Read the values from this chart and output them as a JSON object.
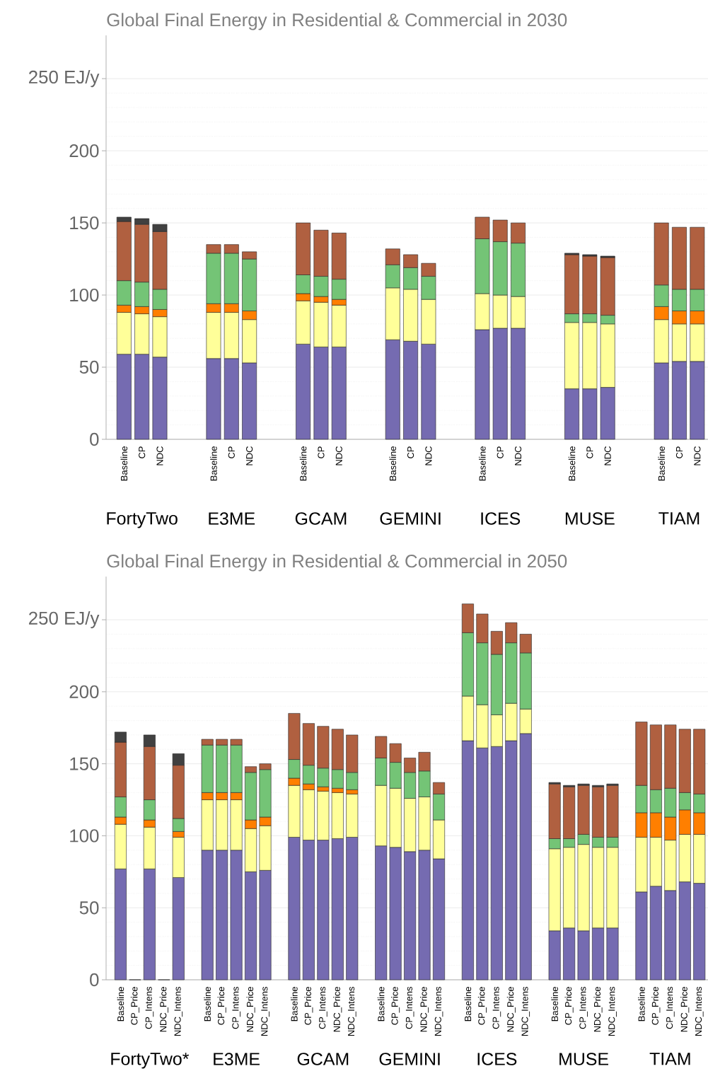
{
  "chart_data": [
    {
      "type": "bar",
      "stacked": true,
      "title": "Global Final Energy in Residential & Commercial in 2030",
      "categories": [
        "Baseline",
        "CP",
        "NDC",
        null,
        null,
        "Baseline",
        "CP",
        "NDC",
        null,
        null,
        "Baseline",
        "CP",
        "NDC",
        null,
        null,
        "Baseline",
        "CP",
        "NDC",
        null,
        null,
        "Baseline",
        "CP",
        "NDC",
        null,
        null,
        "Baseline",
        "CP",
        "NDC",
        null,
        null,
        "Baseline",
        "CP",
        "NDC"
      ],
      "series": [
        {
          "color": "#756bb1",
          "values": [
            59,
            59,
            57,
            null,
            null,
            56,
            56,
            53,
            null,
            null,
            66,
            64,
            64,
            null,
            null,
            69,
            68,
            66,
            null,
            null,
            76,
            77,
            77,
            null,
            null,
            35,
            35,
            36,
            null,
            null,
            53,
            54,
            54
          ]
        },
        {
          "color": "#ffff99",
          "values": [
            29,
            28,
            28,
            null,
            null,
            32,
            32,
            30,
            null,
            null,
            30,
            31,
            29,
            null,
            null,
            36,
            36,
            31,
            null,
            null,
            25,
            23,
            22,
            null,
            null,
            46,
            46,
            44,
            null,
            null,
            30,
            26,
            26
          ]
        },
        {
          "color": "#ff7f00",
          "values": [
            5,
            5,
            5,
            null,
            null,
            6,
            6,
            6,
            null,
            null,
            5,
            4,
            4,
            null,
            null,
            null,
            null,
            null,
            null,
            null,
            null,
            null,
            null,
            null,
            null,
            null,
            null,
            null,
            null,
            null,
            9,
            9,
            9
          ]
        },
        {
          "color": "#74c476",
          "values": [
            17,
            17,
            14,
            null,
            null,
            35,
            35,
            36,
            null,
            null,
            13,
            14,
            14,
            null,
            null,
            16,
            15,
            16,
            null,
            null,
            38,
            37,
            37,
            null,
            null,
            6,
            6,
            6,
            null,
            null,
            15,
            15,
            15
          ]
        },
        {
          "color": "#b06040",
          "values": [
            41,
            40,
            40,
            null,
            null,
            6,
            6,
            5,
            null,
            null,
            36,
            32,
            32,
            null,
            null,
            11,
            9,
            9,
            null,
            null,
            15,
            15,
            14,
            null,
            null,
            41,
            40,
            40,
            null,
            null,
            43,
            43,
            43
          ]
        },
        {
          "color": "#404040",
          "values": [
            3,
            4,
            5,
            null,
            null,
            null,
            null,
            null,
            null,
            null,
            null,
            null,
            null,
            null,
            null,
            null,
            null,
            null,
            null,
            null,
            null,
            null,
            null,
            null,
            null,
            1,
            1,
            1,
            null,
            null,
            null,
            null,
            null
          ]
        }
      ],
      "ylim": [
        0,
        280
      ],
      "yticks": [
        0,
        50,
        100,
        150,
        200,
        {
          "value": 250,
          "label": "250 EJ/y"
        }
      ],
      "grid": "y",
      "annotations": [
        "FortyTwo",
        "E3ME",
        "GCAM",
        "GEMINI",
        "ICES",
        "MUSE",
        "TIAM"
      ]
    },
    {
      "type": "bar",
      "stacked": true,
      "title": "Global Final Energy in Residential & Commercial in 2050",
      "categories": [
        "Baseline",
        "CP_Price",
        "CP_Intens",
        "NDC_Price",
        "NDC_Intens",
        null,
        "Baseline",
        "CP_Price",
        "CP_Intens",
        "NDC_Price",
        "NDC_Intens",
        null,
        "Baseline",
        "CP_Price",
        "CP_Intens",
        "NDC_Price",
        "NDC_Intens",
        null,
        "Baseline",
        "CP_Price",
        "CP_Intens",
        "NDC_Price",
        "NDC_Intens",
        null,
        "Baseline",
        "CP_Price",
        "CP_Intens",
        "NDC_Price",
        "NDC_Intens",
        null,
        "Baseline",
        "CP_Price",
        "CP_Intens",
        "NDC_Price",
        "NDC_Intens",
        null,
        "Baseline",
        "CP_Price",
        "CP_Intens",
        "NDC_Price",
        "NDC_Intens"
      ],
      "series": [
        {
          "color": "#756bb1",
          "values": [
            77,
            0,
            77,
            0,
            71,
            null,
            90,
            90,
            90,
            75,
            76,
            null,
            99,
            97,
            97,
            98,
            99,
            null,
            93,
            92,
            89,
            90,
            84,
            null,
            166,
            161,
            162,
            166,
            171,
            null,
            34,
            36,
            34,
            36,
            36,
            null,
            61,
            65,
            62,
            68,
            67
          ]
        },
        {
          "color": "#ffff99",
          "values": [
            31,
            null,
            29,
            null,
            28,
            null,
            35,
            35,
            35,
            30,
            31,
            null,
            36,
            35,
            34,
            32,
            30,
            null,
            42,
            41,
            37,
            37,
            27,
            null,
            31,
            30,
            22,
            26,
            17,
            null,
            57,
            56,
            60,
            56,
            56,
            null,
            38,
            34,
            35,
            33,
            34
          ]
        },
        {
          "color": "#ff7f00",
          "values": [
            5,
            null,
            5,
            null,
            4,
            null,
            5,
            5,
            5,
            6,
            6,
            null,
            5,
            4,
            3,
            3,
            3,
            null,
            null,
            null,
            null,
            null,
            null,
            null,
            null,
            null,
            null,
            null,
            null,
            null,
            null,
            null,
            null,
            null,
            null,
            null,
            17,
            17,
            16,
            17,
            15
          ]
        },
        {
          "color": "#74c476",
          "values": [
            14,
            null,
            14,
            null,
            9,
            null,
            33,
            33,
            33,
            33,
            33,
            null,
            13,
            13,
            13,
            13,
            12,
            null,
            19,
            18,
            18,
            18,
            18,
            null,
            44,
            43,
            42,
            42,
            39,
            null,
            7,
            6,
            7,
            7,
            7,
            null,
            19,
            16,
            20,
            12,
            13
          ]
        },
        {
          "color": "#b06040",
          "values": [
            38,
            null,
            37,
            null,
            37,
            null,
            4,
            4,
            4,
            4,
            4,
            null,
            32,
            29,
            29,
            28,
            26,
            null,
            15,
            13,
            10,
            13,
            8,
            null,
            20,
            20,
            16,
            14,
            13,
            null,
            38,
            36,
            34,
            35,
            36,
            null,
            44,
            45,
            44,
            44,
            45
          ]
        },
        {
          "color": "#404040",
          "values": [
            7,
            null,
            8,
            null,
            8,
            null,
            null,
            null,
            null,
            null,
            null,
            null,
            null,
            null,
            null,
            null,
            null,
            null,
            null,
            null,
            null,
            null,
            null,
            null,
            null,
            null,
            null,
            null,
            null,
            null,
            1,
            1,
            1,
            1,
            1,
            null,
            null,
            null,
            null,
            null,
            null
          ]
        }
      ],
      "ylim": [
        0,
        280
      ],
      "yticks": [
        0,
        50,
        100,
        150,
        200,
        {
          "value": 250,
          "label": "250 EJ/y"
        }
      ],
      "grid": "y",
      "annotations": [
        "FortyTwo*",
        "E3ME",
        "GCAM",
        "GEMINI",
        "ICES",
        "MUSE",
        "TIAM"
      ]
    }
  ]
}
